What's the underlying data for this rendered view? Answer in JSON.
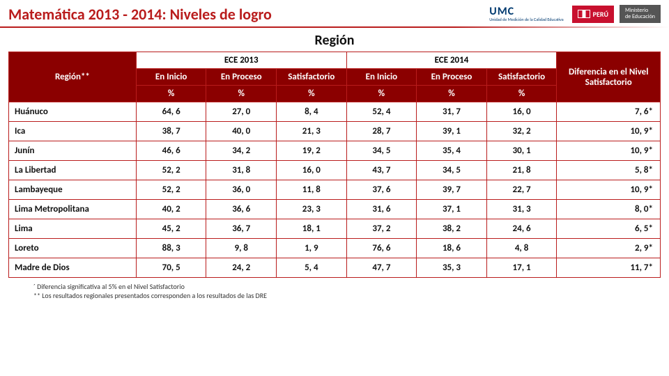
{
  "header": {
    "title": "Matemática 2013 - 2014: Niveles de logro",
    "umc_label": "UMC",
    "umc_sub": "Unidad de Medición de la Calidad Educativa",
    "peru_label": "PERÚ",
    "mined_line1": "Ministerio",
    "mined_line2": "de Educación"
  },
  "section_title": "Región",
  "columns": {
    "region_label": "Región**",
    "group_2013": "ECE 2013",
    "group_2014": "ECE 2014",
    "en_inicio": "En Inicio",
    "en_proceso": "En Proceso",
    "satisfactorio": "Satisfactorio",
    "pct": "%",
    "diff_label": "Diferencia en el Nivel Satisfactorio"
  },
  "rows": [
    {
      "region": "Huánuco",
      "i13": "64, 6",
      "p13": "27, 0",
      "s13": "8, 4",
      "i14": "52, 4",
      "p14": "31, 7",
      "s14": "16, 0",
      "diff": "7, 6*"
    },
    {
      "region": "Ica",
      "i13": "38, 7",
      "p13": "40, 0",
      "s13": "21, 3",
      "i14": "28, 7",
      "p14": "39, 1",
      "s14": "32, 2",
      "diff": "10, 9*"
    },
    {
      "region": "Junín",
      "i13": "46, 6",
      "p13": "34, 2",
      "s13": "19, 2",
      "i14": "34, 5",
      "p14": "35, 4",
      "s14": "30, 1",
      "diff": "10, 9*"
    },
    {
      "region": "La Libertad",
      "i13": "52, 2",
      "p13": "31, 8",
      "s13": "16, 0",
      "i14": "43, 7",
      "p14": "34, 5",
      "s14": "21, 8",
      "diff": "5, 8*"
    },
    {
      "region": "Lambayeque",
      "i13": "52, 2",
      "p13": "36, 0",
      "s13": "11, 8",
      "i14": "37, 6",
      "p14": "39, 7",
      "s14": "22, 7",
      "diff": "10, 9*"
    },
    {
      "region": "Lima Metropolitana",
      "i13": "40, 2",
      "p13": "36, 6",
      "s13": "23, 3",
      "i14": "31, 6",
      "p14": "37, 1",
      "s14": "31, 3",
      "diff": "8, 0*"
    },
    {
      "region": "Lima",
      "i13": "45, 2",
      "p13": "36, 7",
      "s13": "18, 1",
      "i14": "37, 2",
      "p14": "38, 2",
      "s14": "24, 6",
      "diff": "6, 5*"
    },
    {
      "region": "Loreto",
      "i13": "88, 3",
      "p13": "9, 8",
      "s13": "1, 9",
      "i14": "76, 6",
      "p14": "18, 6",
      "s14": "4, 8",
      "diff": "2, 9*"
    },
    {
      "region": "Madre de Dios",
      "i13": "70, 5",
      "p13": "24, 2",
      "s13": "5, 4",
      "i14": "47, 7",
      "p14": "35, 3",
      "s14": "17, 1",
      "diff": "11, 7*"
    }
  ],
  "footnotes": {
    "f1": "´ Diferencia significativa al 5% en el Nivel Satisfactorio",
    "f2": "** Los resultados regionales presentados corresponden a los resultados de las DRE"
  },
  "style": {
    "accent": "#b91c1c",
    "header_bg": "#8b0000"
  }
}
